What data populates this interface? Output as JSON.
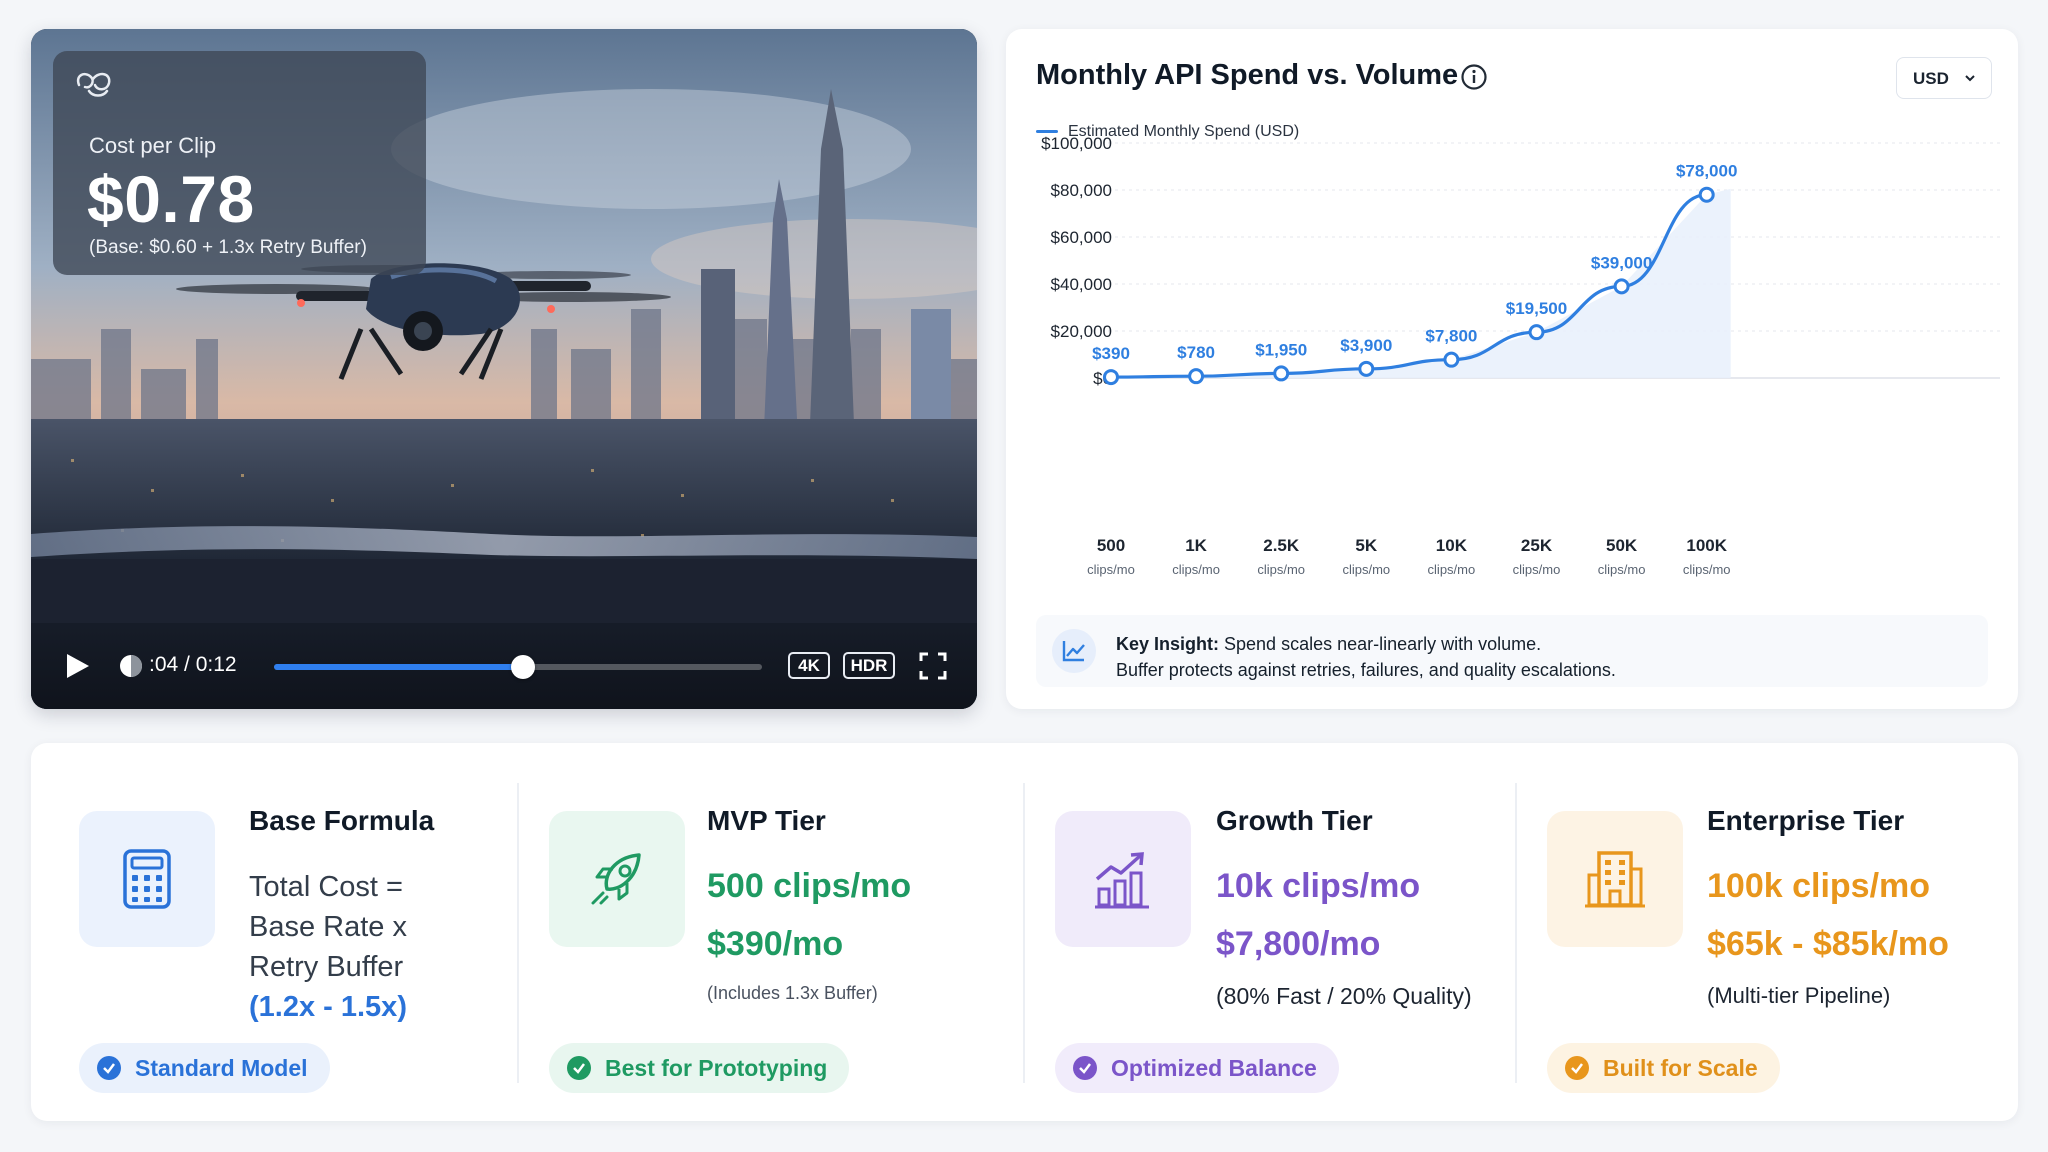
{
  "video": {
    "cost_label": "Cost per Clip",
    "cost_value": "$0.78",
    "cost_note": "(Base: $0.60 + 1.3x Retry Buffer)",
    "time": ":04 / 0:12",
    "progress": 0.51,
    "badge_4k": "4K",
    "badge_hdr": "HDR",
    "icons": [
      "logo-icon",
      "play-icon",
      "volume-icon",
      "fullscreen-icon"
    ]
  },
  "chart": {
    "title": "Monthly API Spend vs. Volume",
    "currency": "USD",
    "legend": "Estimated Monthly Spend (USD)",
    "insight_bold": "Key Insight:",
    "insight_line1": " Spend scales near-linearly with volume.",
    "insight_line2": "Buffer protects against retries, failures, and quality escalations.",
    "accent": "#2f7fe0"
  },
  "chart_data": {
    "type": "line",
    "title": "Monthly API Spend vs. Volume",
    "series": [
      {
        "name": "Estimated Monthly Spend (USD)",
        "values": [
          390,
          780,
          1950,
          3900,
          7800,
          19500,
          39000,
          78000
        ]
      }
    ],
    "categories": [
      "500",
      "1K",
      "2.5K",
      "5K",
      "10K",
      "25K",
      "50K",
      "100K"
    ],
    "category_sublabel": "clips/mo",
    "data_labels": [
      "$390",
      "$780",
      "$1,950",
      "$3,900",
      "$7,800",
      "$19,500",
      "$39,000",
      "$78,000"
    ],
    "y_ticks": [
      0,
      20000,
      40000,
      60000,
      80000,
      100000
    ],
    "y_tick_labels": [
      "$0",
      "$20,000",
      "$40,000",
      "$60,000",
      "$80,000",
      "$100,000"
    ],
    "ylim": [
      0,
      100000
    ],
    "grid": true,
    "legend_position": "top-left"
  },
  "tiers": {
    "base": {
      "title": "Base Formula",
      "formula_lines": [
        "Total Cost =",
        "Base Rate x",
        "Retry Buffer"
      ],
      "formula_highlight": "(1.2x - 1.5x)",
      "pill": "Standard Model",
      "icon": "calculator-icon",
      "color": "#2a72d8"
    },
    "mvp": {
      "title": "MVP Tier",
      "line1": "500 clips/mo",
      "line2": "$390/mo",
      "note": "(Includes 1.3x Buffer)",
      "pill": "Best for Prototyping",
      "icon": "rocket-icon",
      "color": "#1f9a62"
    },
    "growth": {
      "title": "Growth Tier",
      "line1": "10k clips/mo",
      "line2": "$7,800/mo",
      "note": "(80% Fast / 20% Quality)",
      "pill": "Optimized Balance",
      "icon": "growth-chart-icon",
      "color": "#7b55c9"
    },
    "enterprise": {
      "title": "Enterprise Tier",
      "line1": "100k clips/mo",
      "line2": "$65k - $85k/mo",
      "note": "(Multi-tier Pipeline)",
      "pill": "Built for Scale",
      "icon": "building-icon",
      "color": "#e8961c"
    }
  }
}
